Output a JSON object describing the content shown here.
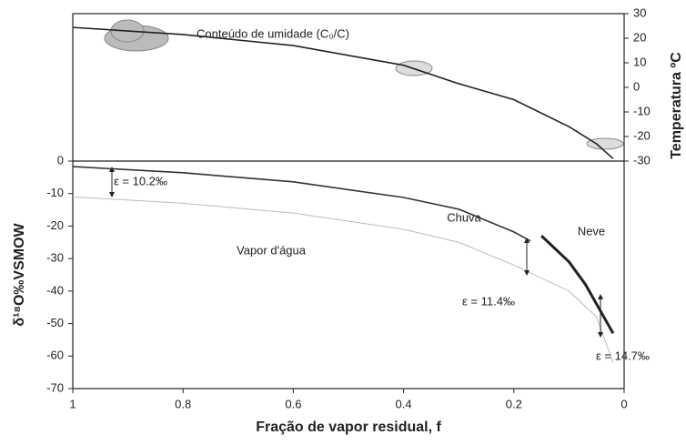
{
  "chart_data": [
    {
      "type": "line",
      "xlim": [
        1,
        0
      ],
      "y2lim": [
        -30,
        30
      ],
      "y2ticks": [
        -30,
        -20,
        -10,
        0,
        10,
        20,
        30
      ],
      "y2label": "Temperatura ºC",
      "series": [
        {
          "name": "Conteúdo de umidade (C₀/C)",
          "color": "#222222",
          "axis": "y2",
          "x": [
            1,
            0.8,
            0.6,
            0.4,
            0.3,
            0.2,
            0.1,
            0.05,
            0.02
          ],
          "values": [
            24.4,
            21.5,
            17,
            9,
            1.5,
            -5,
            -16,
            -23,
            -29
          ]
        }
      ]
    },
    {
      "type": "line",
      "xlim": [
        1,
        0
      ],
      "ylim": [
        -70,
        0
      ],
      "yticks": [
        -70,
        -60,
        -50,
        -40,
        -30,
        -20,
        -10,
        0
      ],
      "xticks": [
        1,
        0.8,
        0.6,
        0.4,
        0.2,
        0
      ],
      "xlabel": "Fração de vapor residual, f",
      "ylabel": "δ¹⁸O‰VSMOW",
      "series": [
        {
          "name": "Chuva",
          "color": "#333333",
          "x": [
            1,
            0.8,
            0.6,
            0.4,
            0.3,
            0.2,
            0.17
          ],
          "values": [
            -1.7,
            -3.6,
            -6.4,
            -11.2,
            -14.8,
            -21.8,
            -24.6
          ]
        },
        {
          "name": "Vapor d'água",
          "color": "#bbbbbb",
          "x": [
            1,
            0.8,
            0.6,
            0.4,
            0.3,
            0.2,
            0.1,
            0.05,
            0.02
          ],
          "values": [
            -11,
            -13,
            -16,
            -21,
            -25,
            -32,
            -40,
            -48,
            -62
          ]
        },
        {
          "name": "Neve",
          "color": "#222222",
          "x": [
            0.15,
            0.1,
            0.07,
            0.05,
            0.03,
            0.02
          ],
          "values": [
            -23,
            -31,
            -38,
            -44,
            -50,
            -53
          ]
        }
      ],
      "annotations": [
        "ε = 10.2‰",
        "ε = 11.4‰",
        "ε = 14.7‰"
      ]
    }
  ]
}
